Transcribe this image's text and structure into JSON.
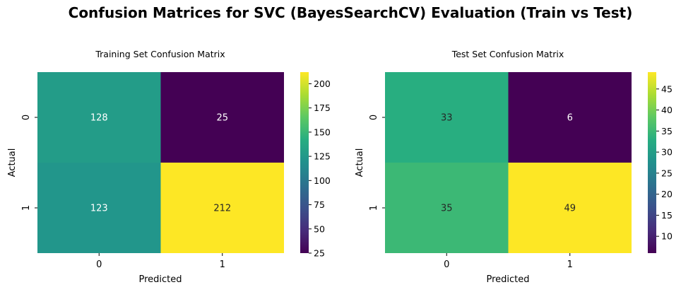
{
  "figure": {
    "title": "Confusion Matrices for SVC (BayesSearchCV) Evaluation (Train vs Test)"
  },
  "chart_data": [
    {
      "type": "heatmap",
      "title": "Training Set Confusion Matrix",
      "xlabel": "Predicted",
      "ylabel": "Actual",
      "x_categories": [
        "0",
        "1"
      ],
      "y_categories": [
        "0",
        "1"
      ],
      "values": [
        [
          128,
          25
        ],
        [
          123,
          212
        ]
      ],
      "colormap": "viridis",
      "colorbar": {
        "min": 25,
        "max": 212,
        "ticks": [
          25,
          50,
          75,
          100,
          125,
          150,
          175,
          200
        ]
      }
    },
    {
      "type": "heatmap",
      "title": "Test Set Confusion Matrix",
      "xlabel": "Predicted",
      "ylabel": "Actual",
      "x_categories": [
        "0",
        "1"
      ],
      "y_categories": [
        "0",
        "1"
      ],
      "values": [
        [
          33,
          6
        ],
        [
          35,
          49
        ]
      ],
      "colormap": "viridis",
      "colorbar": {
        "min": 6,
        "max": 49,
        "ticks": [
          10,
          15,
          20,
          25,
          30,
          35,
          40,
          45
        ]
      }
    }
  ]
}
